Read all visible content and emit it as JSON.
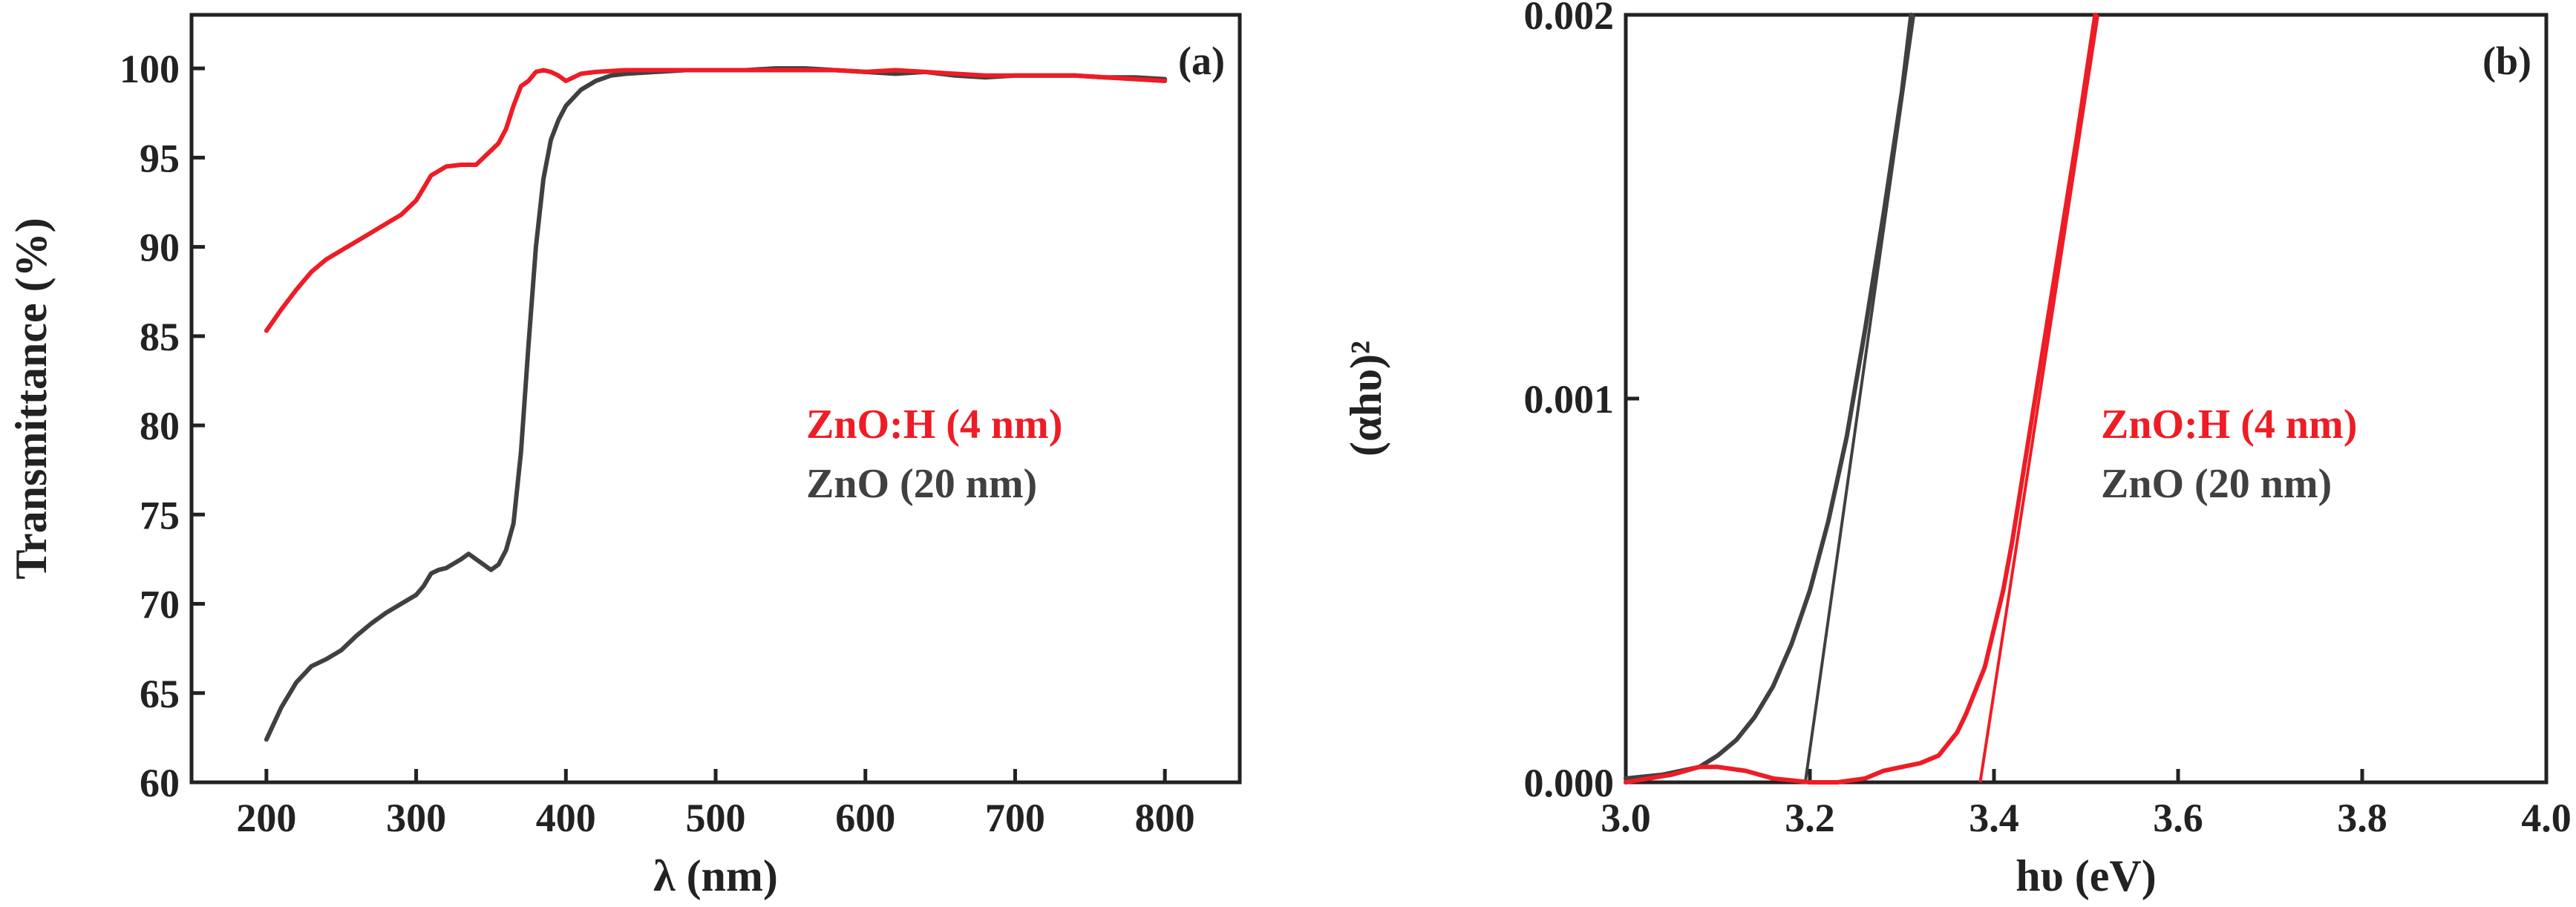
{
  "colors": {
    "red": "#ee1c25",
    "gray": "#404040",
    "axis": "#222222"
  },
  "chart_data": [
    {
      "type": "line",
      "panel": "(a)",
      "xlabel": "λ (nm)",
      "ylabel": "Transmittance (%)",
      "xlim": [
        150,
        850
      ],
      "ylim": [
        60,
        103
      ],
      "xticks": [
        200,
        300,
        400,
        500,
        600,
        700,
        800
      ],
      "yticks": [
        60,
        65,
        70,
        75,
        80,
        85,
        90,
        95,
        100
      ],
      "legend_position": "center-right",
      "series": [
        {
          "name": "ZnO:H (4 nm)",
          "color": "#ee1c25",
          "x": [
            200,
            210,
            220,
            230,
            240,
            250,
            260,
            270,
            280,
            290,
            300,
            305,
            310,
            320,
            330,
            340,
            350,
            355,
            360,
            365,
            370,
            375,
            380,
            385,
            390,
            395,
            400,
            410,
            420,
            440,
            460,
            480,
            500,
            520,
            540,
            560,
            580,
            600,
            620,
            640,
            660,
            680,
            700,
            720,
            740,
            760,
            780,
            800
          ],
          "y": [
            85.3,
            86.5,
            87.6,
            88.6,
            89.3,
            89.8,
            90.3,
            90.8,
            91.3,
            91.8,
            92.6,
            93.3,
            94.0,
            94.5,
            94.6,
            94.6,
            95.4,
            95.8,
            96.6,
            97.9,
            99.0,
            99.3,
            99.8,
            99.9,
            99.8,
            99.6,
            99.3,
            99.7,
            99.8,
            99.9,
            99.9,
            99.9,
            99.9,
            99.9,
            99.9,
            99.9,
            99.9,
            99.8,
            99.9,
            99.8,
            99.7,
            99.6,
            99.6,
            99.6,
            99.6,
            99.5,
            99.4,
            99.3
          ]
        },
        {
          "name": "ZnO (20 nm)",
          "color": "#404040",
          "x": [
            200,
            210,
            220,
            230,
            240,
            250,
            260,
            270,
            280,
            290,
            300,
            305,
            310,
            315,
            320,
            330,
            335,
            340,
            350,
            355,
            360,
            365,
            370,
            375,
            380,
            385,
            390,
            395,
            400,
            410,
            420,
            430,
            440,
            460,
            480,
            500,
            520,
            540,
            560,
            580,
            600,
            620,
            640,
            660,
            680,
            700,
            720,
            740,
            760,
            780,
            800
          ],
          "y": [
            62.4,
            64.2,
            65.6,
            66.5,
            66.9,
            67.4,
            68.2,
            68.9,
            69.5,
            70.0,
            70.5,
            71.0,
            71.7,
            71.9,
            72.0,
            72.5,
            72.8,
            72.5,
            71.9,
            72.2,
            73.0,
            74.5,
            78.5,
            84.5,
            90.0,
            93.8,
            96.0,
            97.1,
            97.9,
            98.8,
            99.3,
            99.6,
            99.7,
            99.8,
            99.9,
            99.9,
            99.9,
            100.0,
            100.0,
            99.9,
            99.8,
            99.7,
            99.8,
            99.6,
            99.5,
            99.6,
            99.6,
            99.6,
            99.5,
            99.5,
            99.4
          ]
        }
      ]
    },
    {
      "type": "line",
      "panel": "(b)",
      "xlabel": "hυ (eV)",
      "ylabel": "(αhυ)²",
      "xlim": [
        3.0,
        4.0
      ],
      "ylim": [
        0.0,
        0.002
      ],
      "xticks": [
        "3.0",
        "3.2",
        "3.4",
        "3.6",
        "3.8",
        "4.0"
      ],
      "yticks": [
        "0.000",
        "0.001",
        "0.002"
      ],
      "legend_position": "center-right",
      "series": [
        {
          "name": "ZnO:H (4 nm)",
          "color": "#ee1c25",
          "x": [
            3.0,
            3.05,
            3.08,
            3.1,
            3.13,
            3.16,
            3.2,
            3.23,
            3.26,
            3.28,
            3.3,
            3.32,
            3.34,
            3.35,
            3.36,
            3.37,
            3.38,
            3.39,
            3.4,
            3.41,
            3.42,
            3.43,
            3.45,
            3.47,
            3.49,
            3.51
          ],
          "y": [
            0.0,
            2e-05,
            4e-05,
            4e-05,
            3e-05,
            1e-05,
            0.0,
            0.0,
            1e-05,
            3e-05,
            4e-05,
            5e-05,
            7e-05,
            0.0001,
            0.00013,
            0.00018,
            0.00024,
            0.0003,
            0.0004,
            0.0005,
            0.00063,
            0.00078,
            0.00108,
            0.00138,
            0.00168,
            0.002
          ]
        },
        {
          "name": "ZnO (20 nm)",
          "color": "#404040",
          "x": [
            3.0,
            3.04,
            3.08,
            3.1,
            3.12,
            3.14,
            3.16,
            3.18,
            3.2,
            3.22,
            3.24,
            3.26,
            3.28,
            3.3,
            3.31
          ],
          "y": [
            1e-05,
            2e-05,
            4e-05,
            7e-05,
            0.00011,
            0.00017,
            0.00025,
            0.00036,
            0.0005,
            0.00068,
            0.0009,
            0.00118,
            0.00148,
            0.0018,
            0.002
          ]
        }
      ],
      "fit_lines": [
        {
          "name": "ZnO:H (4 nm) extrapolation",
          "color": "#ee1c25",
          "x": [
            3.385,
            3.513
          ],
          "y": [
            0.0,
            0.002
          ]
        },
        {
          "name": "ZnO (20 nm) extrapolation",
          "color": "#404040",
          "x": [
            3.195,
            3.313
          ],
          "y": [
            0.0,
            0.002
          ]
        }
      ]
    }
  ]
}
